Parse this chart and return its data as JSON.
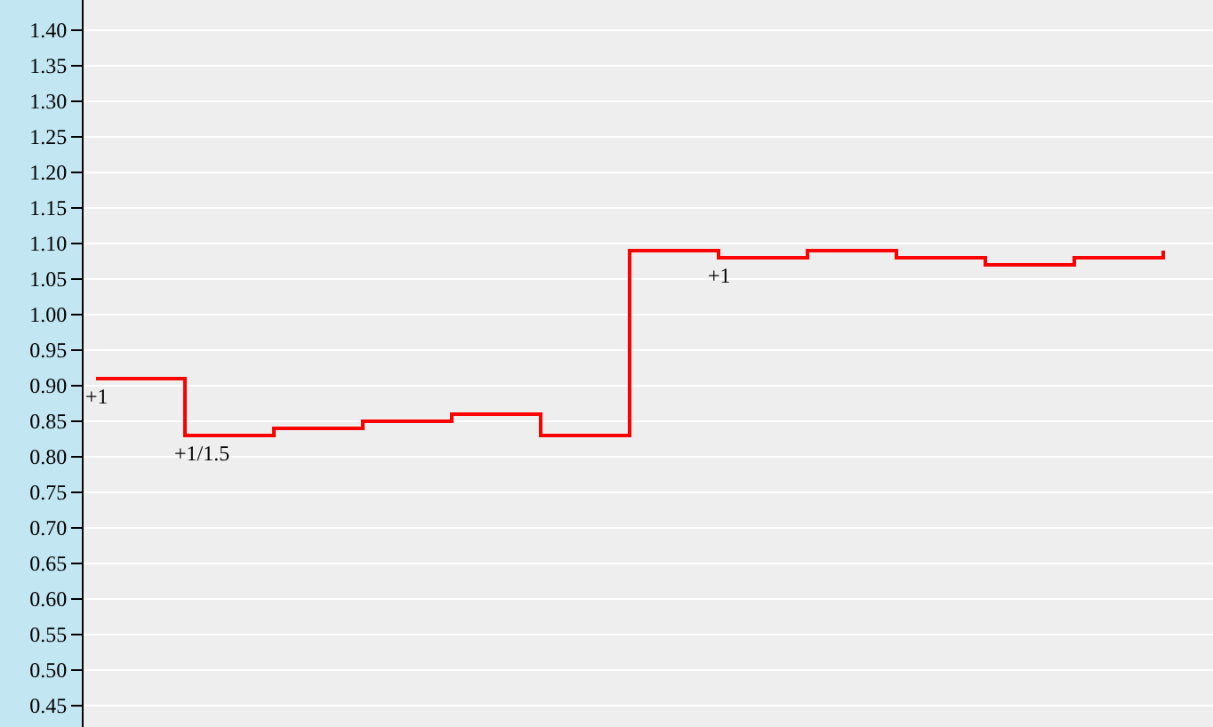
{
  "chart_data": {
    "type": "step",
    "categories": [
      null,
      null,
      null,
      null,
      null,
      null,
      null,
      null,
      null,
      null,
      null,
      null,
      null
    ],
    "series": [
      {
        "color": "#ff0000",
        "values": [
          0.91,
          0.83,
          0.84,
          0.85,
          0.86,
          0.83,
          1.09,
          1.08,
          1.09,
          1.08,
          1.07,
          1.08,
          1.09
        ]
      }
    ],
    "ylim": [
      0.42,
      1.4425
    ],
    "yticks": [
      {
        "value": 0.45,
        "label": "0.45"
      },
      {
        "value": 0.5,
        "label": "0.50"
      },
      {
        "value": 0.55,
        "label": "0.55"
      },
      {
        "value": 0.6,
        "label": "0.60"
      },
      {
        "value": 0.65,
        "label": "0.65"
      },
      {
        "value": 0.7,
        "label": "0.70"
      },
      {
        "value": 0.75,
        "label": "0.75"
      },
      {
        "value": 0.8,
        "label": "0.80"
      },
      {
        "value": 0.85,
        "label": "0.85"
      },
      {
        "value": 0.9,
        "label": "0.90"
      },
      {
        "value": 0.95,
        "label": "0.95"
      },
      {
        "value": 1.0,
        "label": "1.00"
      },
      {
        "value": 1.05,
        "label": "1.05"
      },
      {
        "value": 1.1,
        "label": "1.10"
      },
      {
        "value": 1.15,
        "label": "1.15"
      },
      {
        "value": 1.2,
        "label": "1.20"
      },
      {
        "value": 1.25,
        "label": "1.25"
      },
      {
        "value": 1.3,
        "label": "1.30"
      },
      {
        "value": 1.35,
        "label": "1.35"
      },
      {
        "value": 1.4,
        "label": "1.40"
      }
    ],
    "annotations": [
      {
        "text": "+1",
        "y": 0.91
      },
      {
        "text": "+1/1.5",
        "y": 0.83
      },
      {
        "text": "+1",
        "y": 1.08
      }
    ],
    "grid": "y",
    "marker": "none",
    "line_style": "solid",
    "tick_labels": "y"
  }
}
